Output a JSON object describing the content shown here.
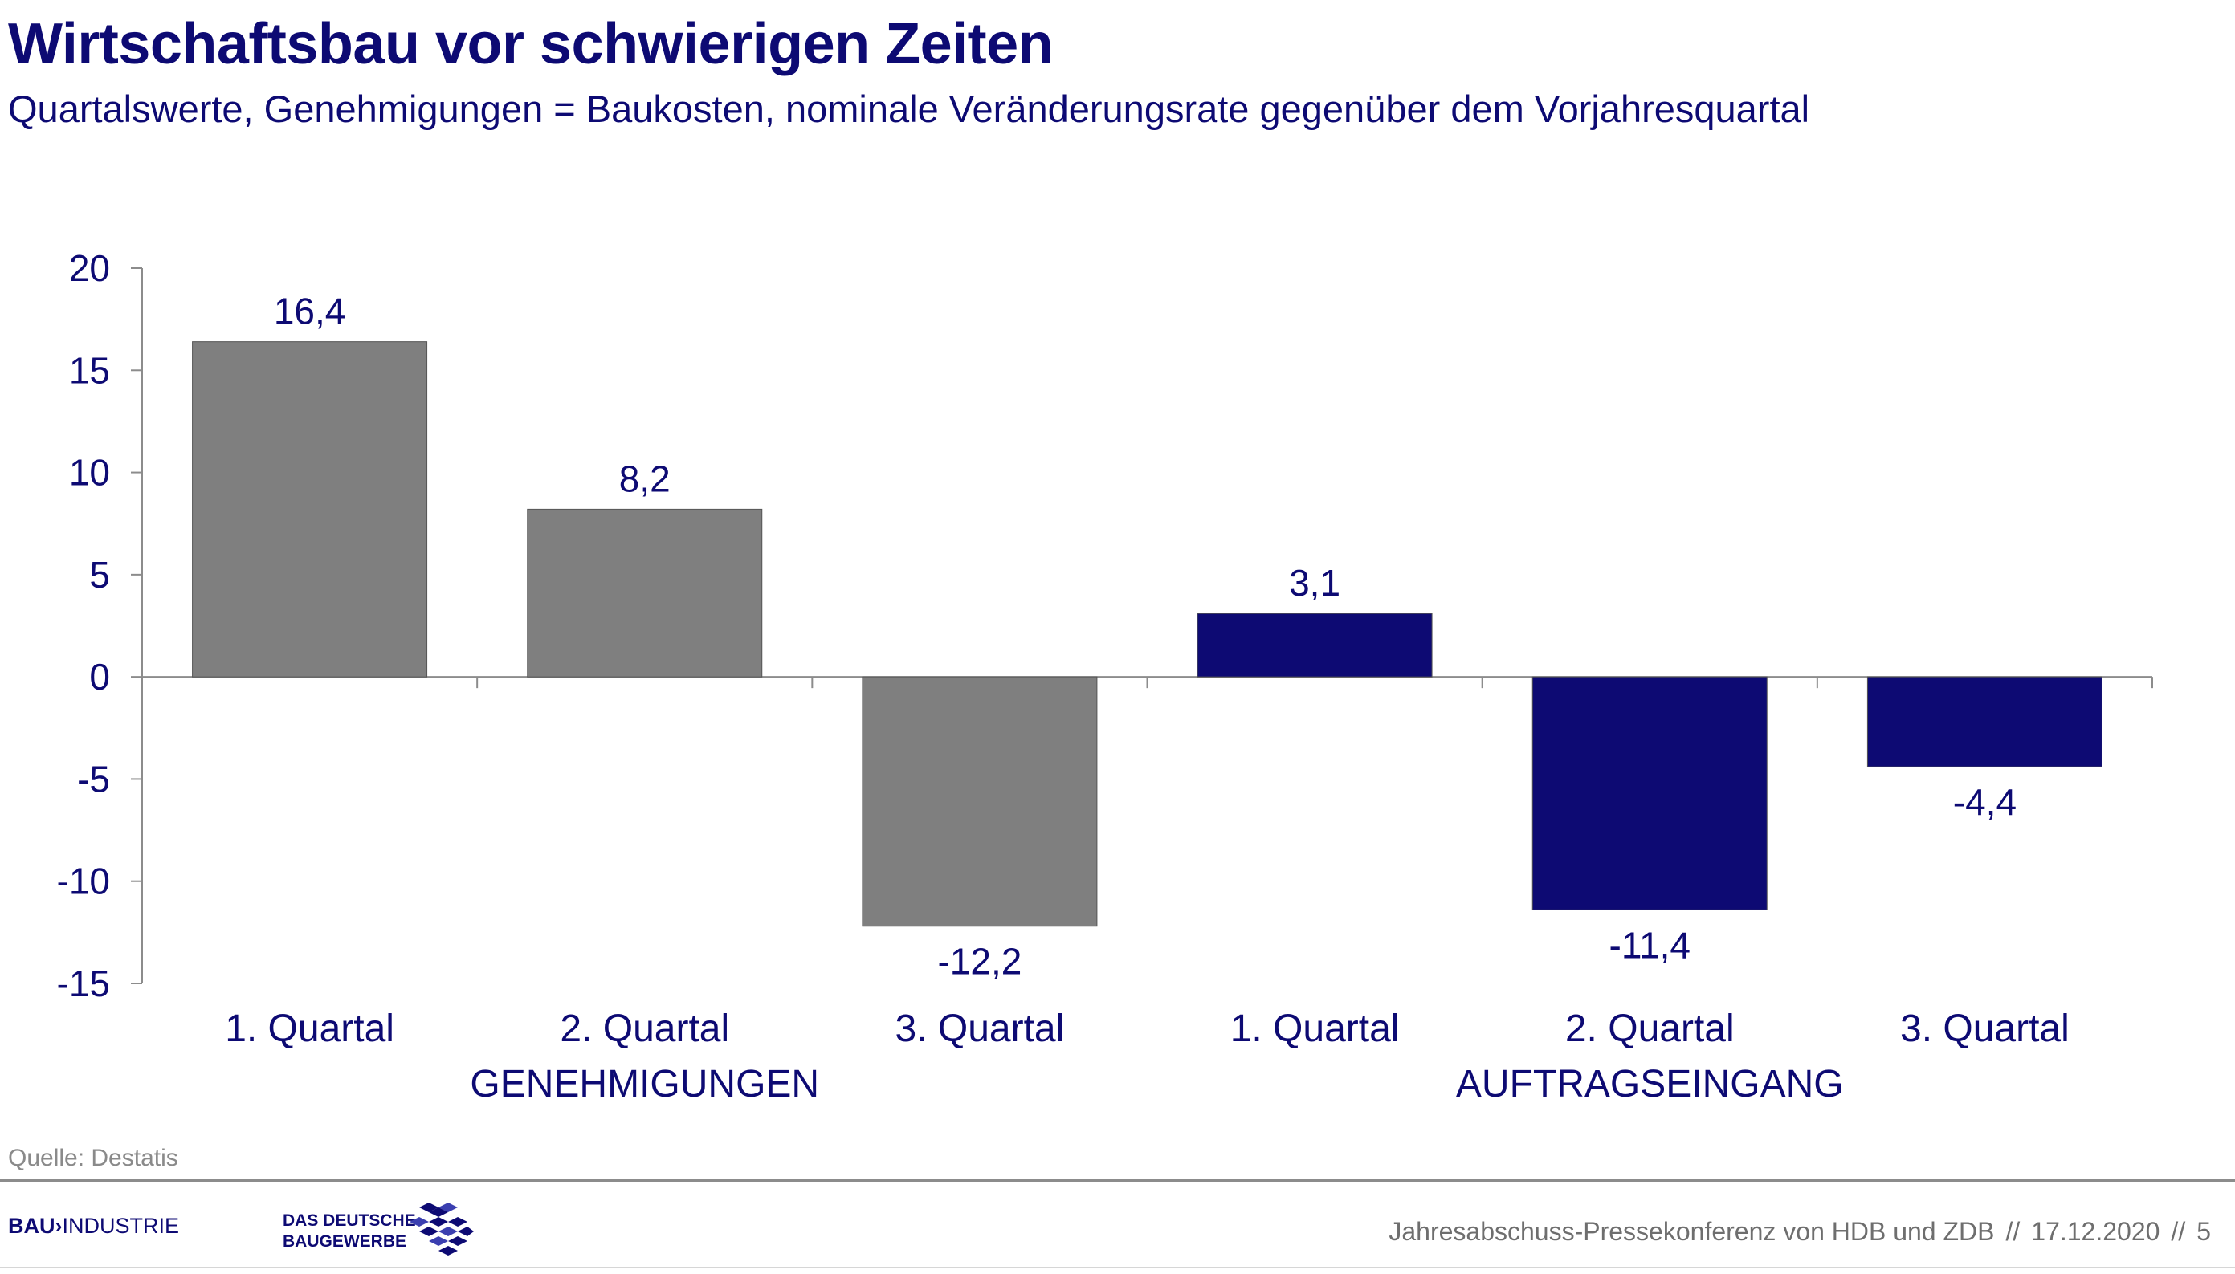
{
  "header": {
    "title": "Wirtschaftsbau vor schwierigen Zeiten",
    "subtitle": "Quartalswerte, Genehmigungen = Baukosten, nominale Veränderungsrate gegenüber dem Vorjahresquartal"
  },
  "chart_data": {
    "type": "bar",
    "categories": [
      "1. Quartal",
      "2. Quartal",
      "3. Quartal",
      "1. Quartal",
      "2. Quartal",
      "3. Quartal"
    ],
    "values": [
      16.4,
      8.2,
      -12.2,
      3.1,
      -11.4,
      -4.4
    ],
    "value_labels": [
      "16,4",
      "8,2",
      "-12,2",
      "3,1",
      "-11,4",
      "-4,4"
    ],
    "groups": [
      {
        "label": "GENEHMIGUNGEN",
        "categories": [
          0,
          1,
          2
        ],
        "color": "#7f7f7f"
      },
      {
        "label": "AUFTRAGSEINGANG",
        "categories": [
          3,
          4,
          5
        ],
        "color": "#0d0a73"
      }
    ],
    "bar_colors": [
      "#7f7f7f",
      "#7f7f7f",
      "#7f7f7f",
      "#0d0a73",
      "#0d0a73",
      "#0d0a73"
    ],
    "ylim": [
      -15,
      20
    ],
    "yticks": [
      20,
      15,
      10,
      5,
      0,
      -5,
      -10,
      -15
    ],
    "ytick_labels": [
      "20",
      "15",
      "10",
      "5",
      "0",
      "-5",
      "-10",
      "-15"
    ],
    "text_color": "#0d0a73",
    "axis_color": "#8c8c8c",
    "grid": false,
    "legend": "none"
  },
  "source": "Quelle: Destatis",
  "footer": {
    "logo_bau_bold": "BAU",
    "logo_bau_mark": "›",
    "logo_bau_rest": "INDUSTRIE",
    "logo_zdb_line1": "DAS DEUTSCHE",
    "logo_zdb_line2": "BAUGEWERBE",
    "event": "Jahresabschuss-Pressekonferenz von HDB und ZDB",
    "sep1": "//",
    "date": "17.12.2020",
    "sep2": "//",
    "page": "5"
  }
}
